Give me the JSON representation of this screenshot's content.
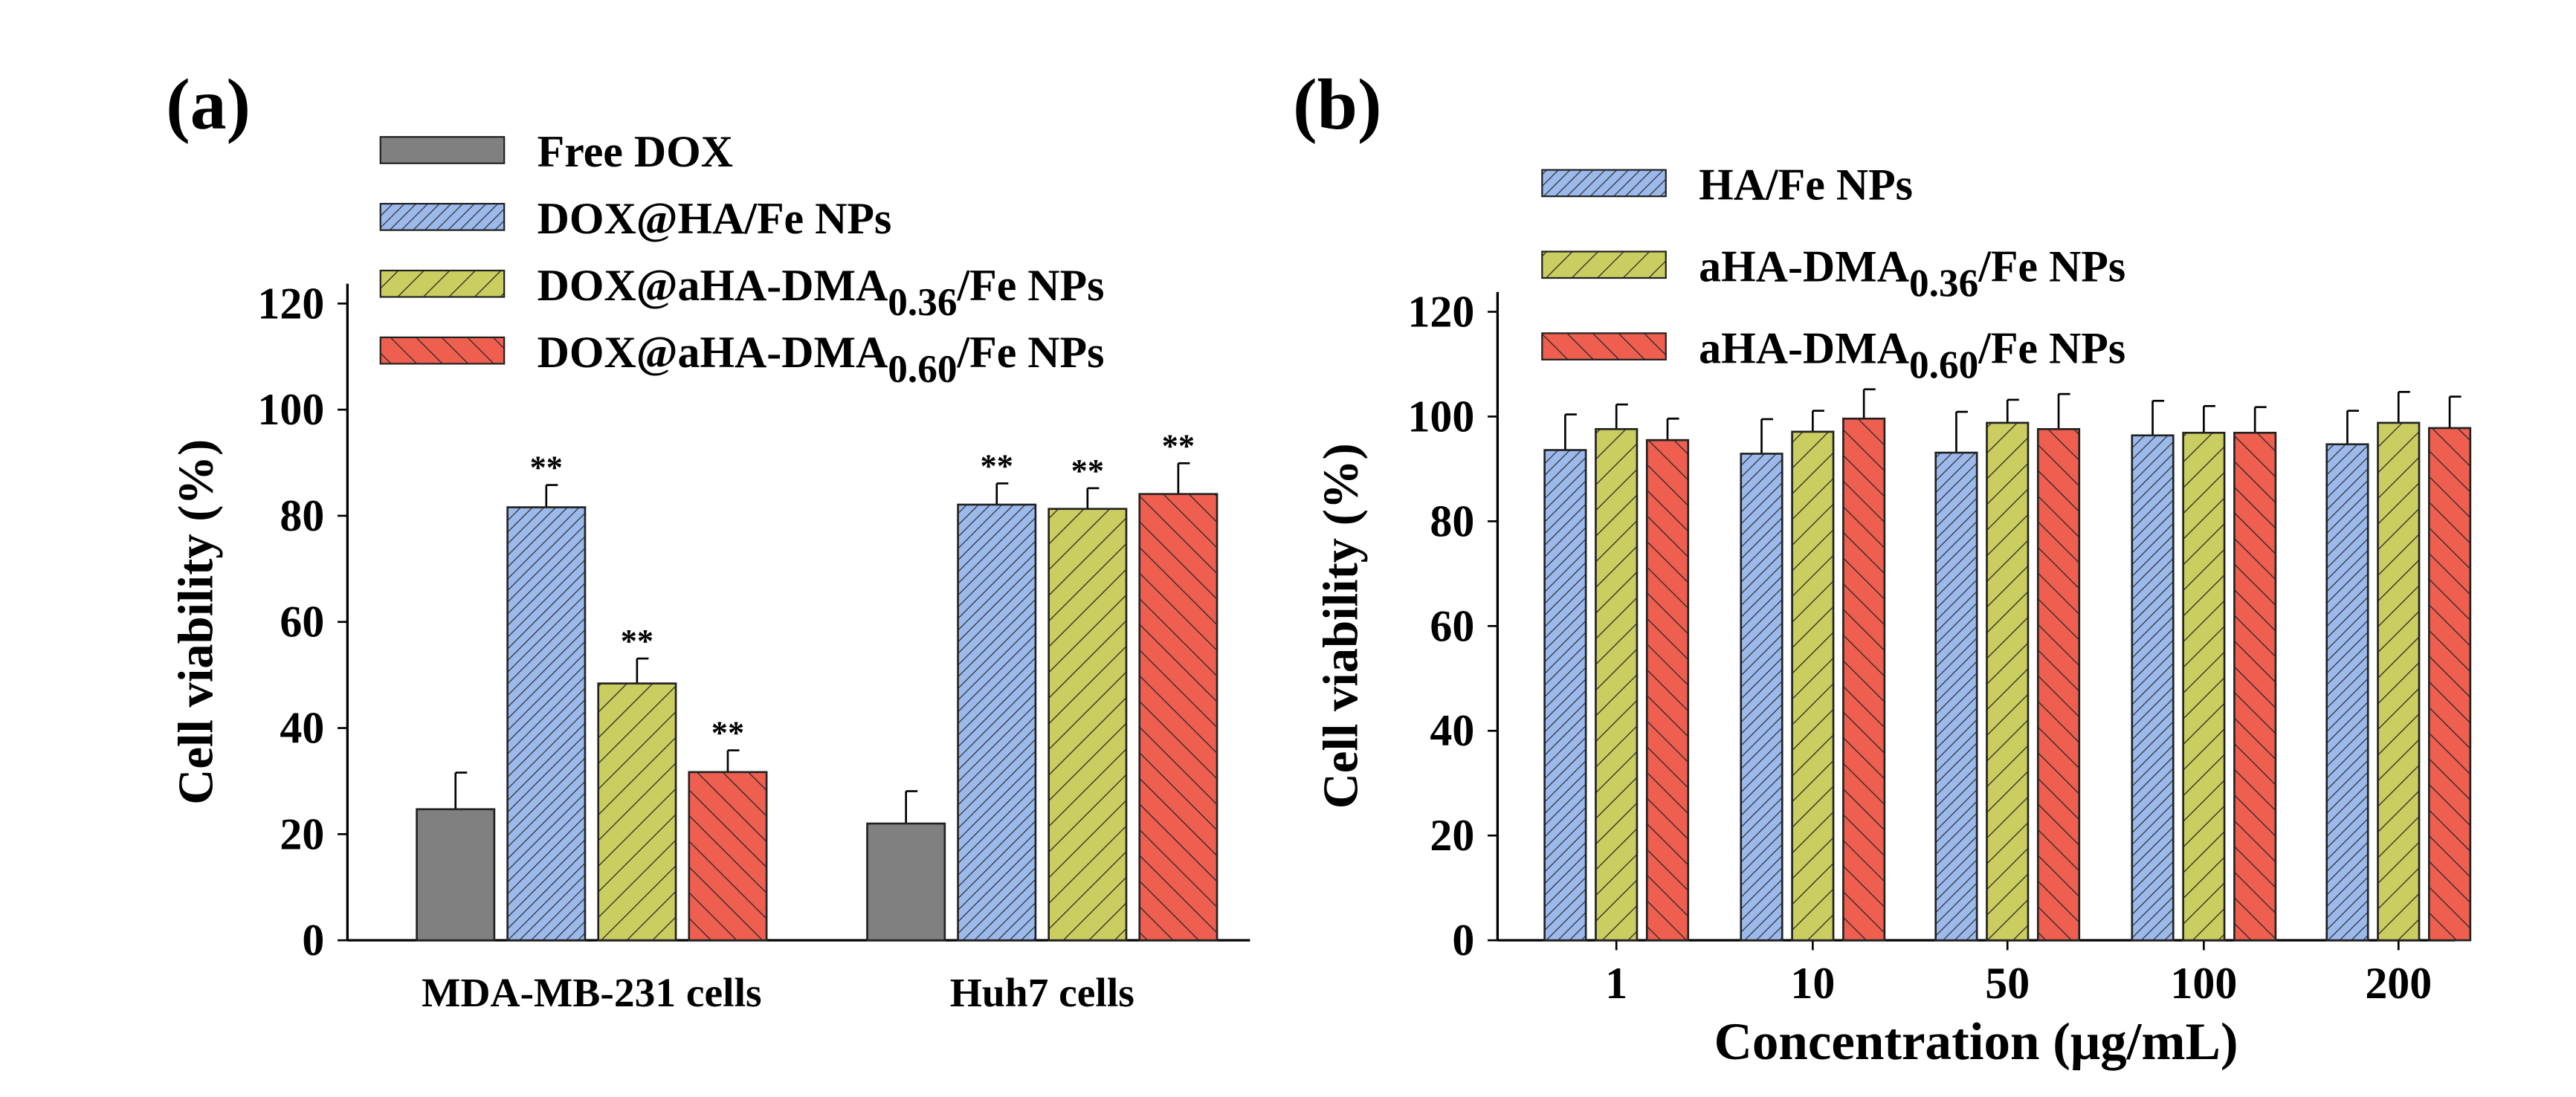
{
  "colors": {
    "free": "#808080",
    "blue": "#9bb9ea",
    "green": "#cacd5f",
    "red": "#ee5f4f"
  },
  "chart_data": [
    {
      "type": "bar",
      "panel_label": "(a)",
      "ylabel": "Cell viability (%)",
      "xlabel": "",
      "ylim": [
        0,
        120
      ],
      "yticks": [
        "0",
        "20",
        "40",
        "60",
        "80",
        "100",
        "120"
      ],
      "categories": [
        "MDA-MB-231 cells",
        "Huh7 cells"
      ],
      "legend_position": "top",
      "series": [
        {
          "name": "Free DOX",
          "name_main": "Free DOX",
          "name_sub": "",
          "name_tail": "",
          "style": "free",
          "values": [
            24.7,
            22.0
          ],
          "errors": [
            6.9,
            6.1
          ],
          "marks": [
            "",
            ""
          ]
        },
        {
          "name": "DOX@HA/Fe NPs",
          "name_main": "DOX@HA/Fe NPs",
          "name_sub": "",
          "name_tail": "",
          "style": "blue",
          "values": [
            81.6,
            82.1
          ],
          "errors": [
            4.2,
            4.0
          ],
          "marks": [
            "**",
            "**"
          ]
        },
        {
          "name": "DOX@aHA-DMA0.36/Fe NPs",
          "name_main": "DOX@aHA-DMA",
          "name_sub": "0.36",
          "name_tail": "/Fe NPs",
          "style": "green",
          "values": [
            48.4,
            81.3
          ],
          "errors": [
            4.7,
            3.9
          ],
          "marks": [
            "**",
            "**"
          ]
        },
        {
          "name": "DOX@aHA-DMA0.60/Fe NPs",
          "name_main": "DOX@aHA-DMA",
          "name_sub": "0.60",
          "name_tail": "/Fe NPs",
          "style": "red",
          "values": [
            31.7,
            84.1
          ],
          "errors": [
            4.1,
            5.8
          ],
          "marks": [
            "**",
            "**"
          ]
        }
      ]
    },
    {
      "type": "bar",
      "panel_label": "(b)",
      "ylabel": "Cell viability (%)",
      "xlabel": "Concentration (μg/mL)",
      "ylim": [
        0,
        120
      ],
      "yticks": [
        "0",
        "20",
        "40",
        "60",
        "80",
        "100",
        "120"
      ],
      "categories": [
        "1",
        "10",
        "50",
        "100",
        "200"
      ],
      "legend_position": "top",
      "series": [
        {
          "name": "HA/Fe NPs",
          "name_main": "HA/Fe NPs",
          "name_sub": "",
          "name_tail": "",
          "style": "blue",
          "values": [
            93.6,
            92.9,
            93.1,
            96.4,
            94.7
          ],
          "errors": [
            6.8,
            6.6,
            7.8,
            6.6,
            6.4
          ]
        },
        {
          "name": "aHA-DMA0.36/Fe NPs",
          "name_main": "aHA-DMA",
          "name_sub": "0.36",
          "name_tail": "/Fe NPs",
          "style": "green",
          "values": [
            97.6,
            97.1,
            98.8,
            96.9,
            98.8
          ],
          "errors": [
            4.7,
            4.0,
            4.4,
            5.1,
            5.9
          ]
        },
        {
          "name": "aHA-DMA0.60/Fe NPs",
          "name_main": "aHA-DMA",
          "name_sub": "0.60",
          "name_tail": "/Fe NPs",
          "style": "red",
          "values": [
            95.5,
            99.6,
            97.6,
            96.9,
            97.8
          ],
          "errors": [
            4.1,
            5.6,
            6.7,
            4.9,
            6.0
          ]
        }
      ]
    }
  ]
}
